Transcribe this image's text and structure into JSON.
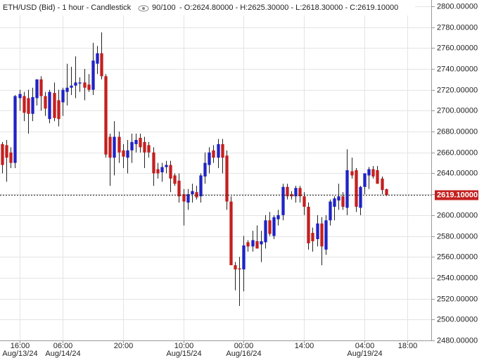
{
  "header": {
    "symbol": "ETH/USD (Bid) - 1 hour - Candlestick",
    "count": "90/100",
    "ohlc": "- O:2624.80000 - H:2625.30000 - L:2618.30000 - C:2619.10000"
  },
  "chart_data": {
    "type": "candlestick",
    "up_color": "#1f23c4",
    "down_color": "#c41f1f",
    "grid": true,
    "ylim": [
      2480,
      2806
    ],
    "yticks": [
      {
        "value": 2480,
        "label": "2480.00000"
      },
      {
        "value": 2500,
        "label": "2500.00000"
      },
      {
        "value": 2520,
        "label": "2520.00000"
      },
      {
        "value": 2540,
        "label": "2540.00000"
      },
      {
        "value": 2560,
        "label": "2560.00000"
      },
      {
        "value": 2580,
        "label": "2580.00000"
      },
      {
        "value": 2600,
        "label": "2600.00000"
      },
      {
        "value": 2620,
        "label": "2620.00000"
      },
      {
        "value": 2640,
        "label": "2640.00000"
      },
      {
        "value": 2660,
        "label": "2660.00000"
      },
      {
        "value": 2680,
        "label": "2680.00000"
      },
      {
        "value": 2700,
        "label": "2700.00000"
      },
      {
        "value": 2720,
        "label": "2720.00000"
      },
      {
        "value": 2740,
        "label": "2740.00000"
      },
      {
        "value": 2760,
        "label": "2760.00000"
      },
      {
        "value": 2780,
        "label": "2780.00000"
      },
      {
        "value": 2800,
        "label": "2800.00000"
      }
    ],
    "xlim": [
      -0.5,
      99.5
    ],
    "xticks": [
      {
        "value": 4,
        "label": "16:00",
        "date": "Aug/13/24"
      },
      {
        "value": 14,
        "label": "06:00",
        "date": "Aug/14/24"
      },
      {
        "value": 28,
        "label": "20:00"
      },
      {
        "value": 42,
        "label": "10:00",
        "date": "Aug/15/24"
      },
      {
        "value": 56,
        "label": "00:00",
        "date": "Aug/16/24"
      },
      {
        "value": 70,
        "label": "14:00"
      },
      {
        "value": 84,
        "label": "04:00",
        "date": "Aug/19/24"
      },
      {
        "value": 94,
        "label": "18:00"
      }
    ],
    "last_price": {
      "value": 2619.1,
      "label": "2619.10000"
    },
    "open": [
      2668,
      2667,
      2660,
      2650,
      2712,
      2714,
      2712,
      2697,
      2712,
      2730,
      2714,
      2692,
      2717,
      2710,
      2708,
      2718,
      2722,
      2724,
      2726,
      2727,
      2725,
      2720,
      2745,
      2755,
      2733,
      2675,
      2655,
      2675,
      2662,
      2655,
      2662,
      2668,
      2674,
      2670,
      2667,
      2660,
      2644,
      2641,
      2646,
      2648,
      2638,
      2633,
      2620,
      2612,
      2620,
      2622,
      2618,
      2637,
      2648,
      2662,
      2655,
      2668,
      2657,
      2613,
      2552,
      2549,
      2548,
      2574,
      2570,
      2575,
      2572,
      2574,
      2595,
      2580,
      2596,
      2600,
      2627,
      2620,
      2618,
      2626,
      2618,
      2608,
      2583,
      2577,
      2592,
      2567,
      2595,
      2608,
      2614,
      2618,
      2607,
      2642,
      2643,
      2607,
      2627,
      2638,
      2644,
      2643,
      2635,
      2624.8
    ],
    "high": [
      2670,
      2672,
      2665,
      2715,
      2720,
      2718,
      2720,
      2722,
      2730,
      2733,
      2718,
      2720,
      2727,
      2720,
      2722,
      2745,
      2742,
      2752,
      2732,
      2740,
      2735,
      2765,
      2762,
      2775,
      2735,
      2678,
      2690,
      2680,
      2668,
      2672,
      2678,
      2678,
      2678,
      2675,
      2670,
      2665,
      2650,
      2650,
      2652,
      2652,
      2640,
      2640,
      2625,
      2625,
      2630,
      2628,
      2640,
      2660,
      2665,
      2667,
      2673,
      2673,
      2662,
      2618,
      2555,
      2560,
      2580,
      2576,
      2585,
      2590,
      2585,
      2600,
      2603,
      2600,
      2605,
      2630,
      2630,
      2623,
      2628,
      2628,
      2622,
      2612,
      2588,
      2600,
      2598,
      2600,
      2615,
      2618,
      2630,
      2622,
      2663,
      2655,
      2645,
      2628,
      2640,
      2646,
      2647,
      2647,
      2637,
      2625.3
    ],
    "low": [
      2640,
      2632,
      2645,
      2645,
      2700,
      2690,
      2678,
      2690,
      2705,
      2700,
      2695,
      2688,
      2690,
      2685,
      2695,
      2705,
      2715,
      2712,
      2718,
      2710,
      2718,
      2715,
      2735,
      2730,
      2655,
      2628,
      2638,
      2650,
      2645,
      2640,
      2650,
      2660,
      2660,
      2645,
      2655,
      2628,
      2635,
      2632,
      2640,
      2622,
      2628,
      2612,
      2590,
      2605,
      2612,
      2615,
      2612,
      2630,
      2640,
      2650,
      2645,
      2640,
      2605,
      2553,
      2528,
      2513,
      2527,
      2565,
      2565,
      2568,
      2555,
      2568,
      2580,
      2577,
      2590,
      2595,
      2615,
      2615,
      2612,
      2612,
      2600,
      2567,
      2565,
      2570,
      2552,
      2562,
      2590,
      2595,
      2605,
      2605,
      2600,
      2635,
      2603,
      2600,
      2620,
      2625,
      2635,
      2630,
      2620,
      2618.3
    ],
    "close": [
      2648,
      2655,
      2650,
      2714,
      2716,
      2698,
      2697,
      2713,
      2730,
      2714,
      2702,
      2718,
      2693,
      2692,
      2720,
      2722,
      2724,
      2727,
      2727,
      2722,
      2720,
      2748,
      2755,
      2733,
      2658,
      2655,
      2675,
      2660,
      2656,
      2662,
      2670,
      2672,
      2665,
      2660,
      2660,
      2640,
      2640,
      2646,
      2648,
      2635,
      2630,
      2618,
      2613,
      2620,
      2623,
      2617,
      2638,
      2650,
      2660,
      2655,
      2668,
      2655,
      2613,
      2552,
      2548,
      2548,
      2571,
      2570,
      2576,
      2568,
      2575,
      2595,
      2582,
      2598,
      2600,
      2627,
      2618,
      2618,
      2626,
      2618,
      2608,
      2573,
      2575,
      2592,
      2570,
      2595,
      2613,
      2616,
      2618,
      2608,
      2643,
      2638,
      2608,
      2627,
      2640,
      2644,
      2637,
      2630,
      2624,
      2619.1
    ]
  }
}
